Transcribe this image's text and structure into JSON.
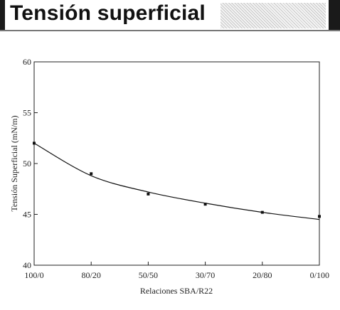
{
  "header": {
    "title": "Tensión superficial"
  },
  "chart_data": {
    "type": "scatter",
    "title": "",
    "xlabel": "Relaciones SBA/R22",
    "ylabel": "Tensión Superficial (mN/m)",
    "categories": [
      "100/0",
      "80/20",
      "50/50",
      "30/70",
      "20/80",
      "0/100"
    ],
    "y_ticks": [
      "60",
      "55",
      "50",
      "45",
      "40"
    ],
    "ylim": [
      40,
      60
    ],
    "grid": false,
    "series": [
      {
        "values": [
          52.0,
          49.0,
          47.0,
          46.0,
          45.2,
          44.8
        ],
        "trend_line": [
          52.0,
          48.8,
          47.2,
          46.1,
          45.2,
          44.5
        ]
      }
    ]
  }
}
